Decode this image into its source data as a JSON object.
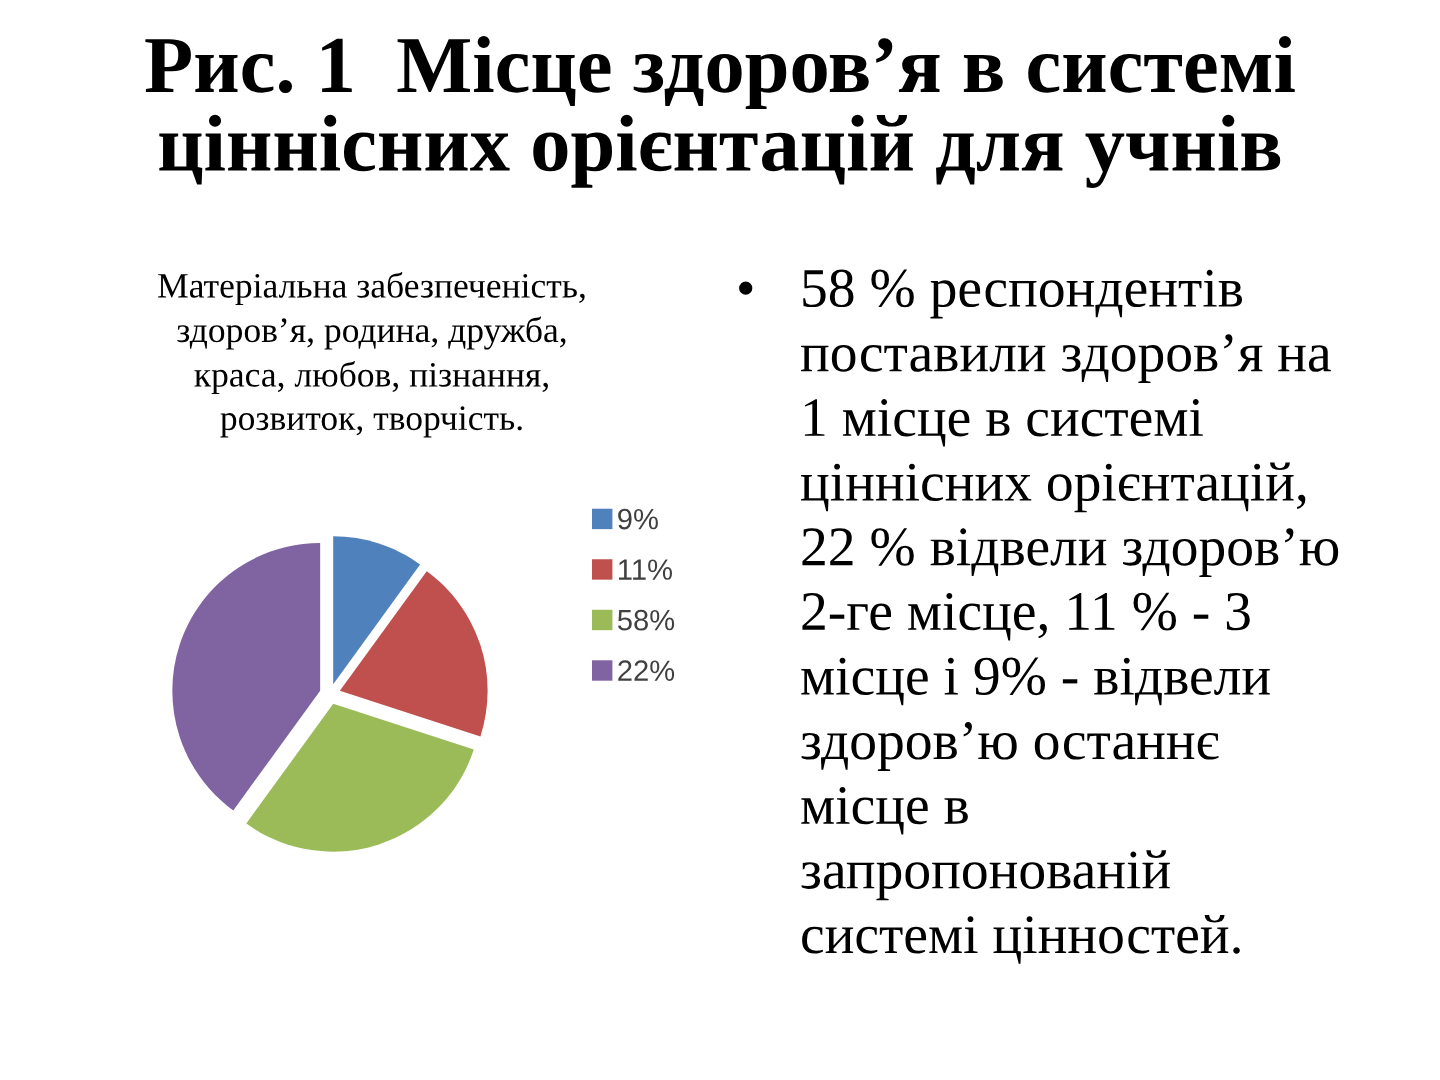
{
  "chart_data": {
    "type": "pie",
    "title": "Рис. 1  Місце здоров’я в системі\nціннісних орієнтацій для учнів",
    "subtitle": "Матеріальна забезпеченість,\nздоров’я, родина, дружба,\nкраса, любов, пізнання,\nрозвиток, творчість.",
    "categories": [
      "9%",
      "11%",
      "58%",
      "22%"
    ],
    "values": [
      10,
      20,
      30,
      40
    ],
    "colors": [
      "#4f81bd",
      "#c0504d",
      "#9bbb59",
      "#8064a2"
    ],
    "legend": "right",
    "annotations": [
      "•",
      "58 % респондентів\nпоставили здоров’я на\n1 місце в системі\nціннісних орієнтацій,\n22 % відвели здоров’ю\n2-ге місце, 11 % - 3\nмісце і 9% - відвели\nздоров’ю останнє\nмісце в\nзапропонованій\nсистемі цінностей."
    ]
  }
}
